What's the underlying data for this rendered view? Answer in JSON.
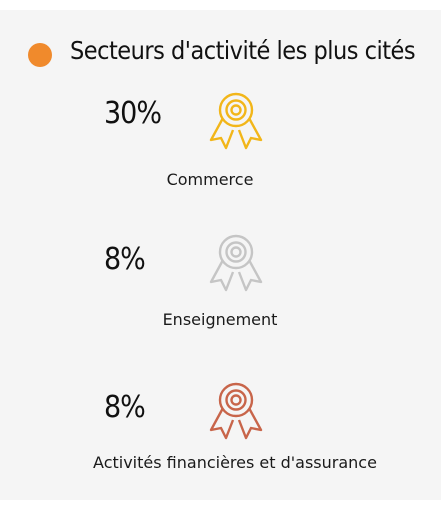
{
  "header": {
    "title": "Secteurs d'activité les plus cités",
    "dot_color": "#f08a2c"
  },
  "sectors": [
    {
      "percent": "30%",
      "label": "Commerce",
      "icon": "award-ribbon-icon",
      "color": "#f2b619"
    },
    {
      "percent": "8%",
      "label": "Enseignement",
      "icon": "award-ribbon-icon",
      "color": "#c5c5c5"
    },
    {
      "percent": "8%",
      "label": "Activités financières et d'assurance",
      "icon": "award-ribbon-icon",
      "color": "#c8654a"
    }
  ]
}
